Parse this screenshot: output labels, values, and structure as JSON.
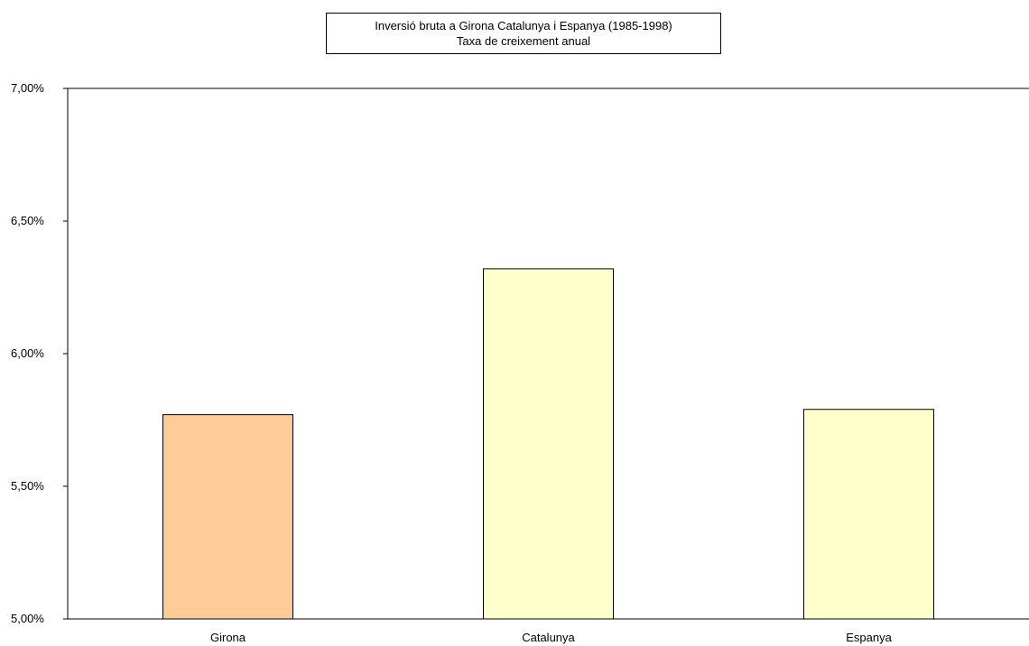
{
  "chart_data": {
    "type": "bar",
    "title": "Inversió bruta a Girona Catalunya i Espanya (1985-1998)",
    "subtitle": "Taxa de creixement anual",
    "categories": [
      "Girona",
      "Catalunya",
      "Espanya"
    ],
    "values": [
      5.77,
      6.32,
      5.79
    ],
    "value_unit": "%",
    "ylim": [
      5.0,
      7.0
    ],
    "yticks": [
      5.0,
      5.5,
      6.0,
      6.5,
      7.0
    ],
    "ytick_labels": [
      "5,00%",
      "5,50%",
      "6,00%",
      "6,50%",
      "7,00%"
    ],
    "xlabel": "",
    "ylabel": "",
    "grid": false,
    "legend": "none",
    "bar_colors": [
      "#FFCC99",
      "#FFFFCC",
      "#FFFFCC"
    ],
    "bar_edge_color": "#000000"
  }
}
